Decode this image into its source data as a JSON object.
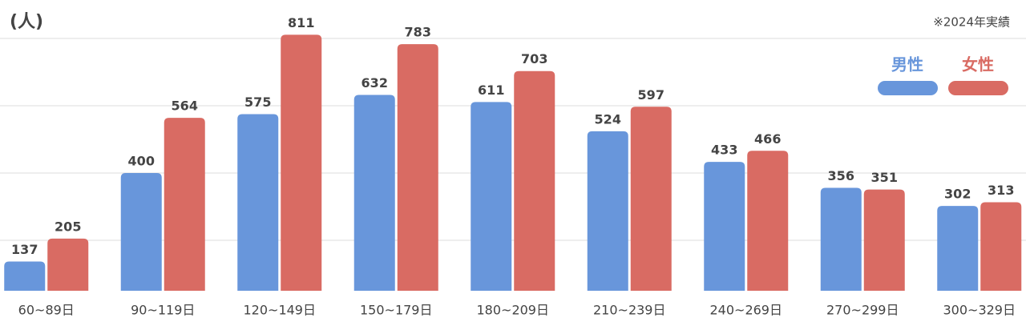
{
  "chart_data": {
    "type": "bar",
    "unit_label": "(人)",
    "note": "※2024年実績",
    "categories": [
      "60~89日",
      "90~119日",
      "120~149日",
      "150~179日",
      "180~209日",
      "210~239日",
      "240~269日",
      "270~299日",
      "300~329日"
    ],
    "series": [
      {
        "name": "男性",
        "color": "#6896db",
        "values": [
          137,
          400,
          575,
          632,
          611,
          524,
          433,
          356,
          302
        ]
      },
      {
        "name": "女性",
        "color": "#d96b63",
        "values": [
          205,
          564,
          811,
          783,
          703,
          597,
          466,
          351,
          313
        ]
      }
    ],
    "ylim": [
      50,
      900
    ],
    "yticks": [
      200,
      400,
      600,
      800
    ],
    "grid": true,
    "legend": "top-right"
  }
}
